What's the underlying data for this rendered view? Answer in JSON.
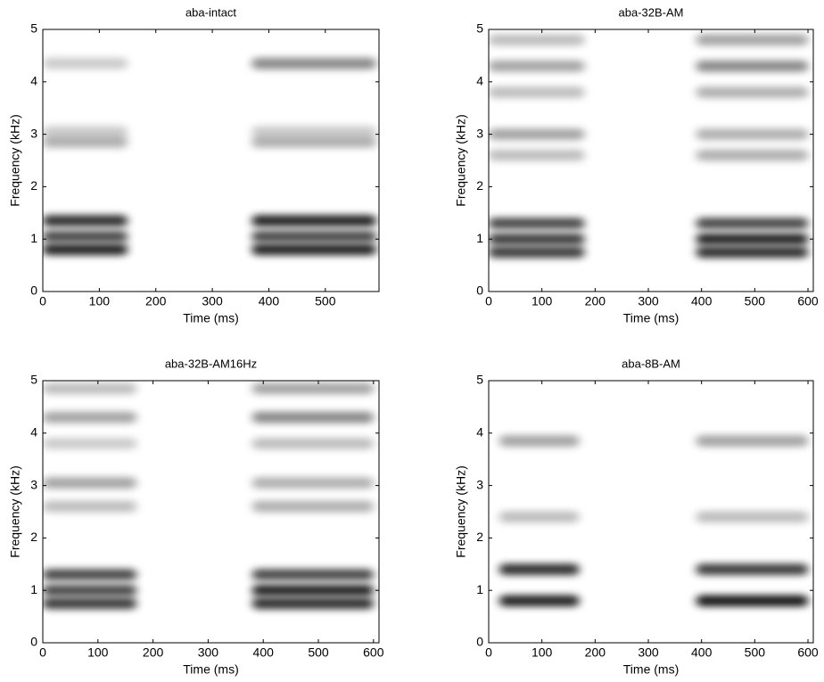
{
  "chart_data": [
    {
      "type": "spectrogram",
      "title": "aba-intact",
      "xlabel": "Time (ms)",
      "ylabel": "Frequency (kHz)",
      "xlim": [
        0,
        595
      ],
      "ylim": [
        0,
        5
      ],
      "xticks": [
        0,
        100,
        200,
        300,
        400,
        500
      ],
      "yticks": [
        0,
        1,
        2,
        3,
        4,
        5
      ],
      "segments": [
        [
          0,
          150
        ],
        [
          370,
          590
        ]
      ],
      "bands": [
        {
          "freq": 0.8,
          "intensity": [
            0.85,
            0.85
          ]
        },
        {
          "freq": 1.05,
          "intensity": [
            0.7,
            0.7
          ]
        },
        {
          "freq": 1.35,
          "intensity": [
            0.8,
            0.85
          ]
        },
        {
          "freq": 2.85,
          "intensity": [
            0.3,
            0.3
          ]
        },
        {
          "freq": 3.05,
          "intensity": [
            0.2,
            0.2
          ]
        },
        {
          "freq": 4.35,
          "intensity": [
            0.2,
            0.45
          ]
        }
      ]
    },
    {
      "type": "spectrogram",
      "title": "aba-32B-AM",
      "xlabel": "Time (ms)",
      "ylabel": "Frequency (kHz)",
      "xlim": [
        0,
        610
      ],
      "ylim": [
        0,
        5
      ],
      "xticks": [
        0,
        100,
        200,
        300,
        400,
        500,
        600
      ],
      "yticks": [
        0,
        1,
        2,
        3,
        4,
        5
      ],
      "segments": [
        [
          0,
          180
        ],
        [
          390,
          600
        ]
      ],
      "bands": [
        {
          "freq": 0.75,
          "intensity": [
            0.75,
            0.8
          ]
        },
        {
          "freq": 1.0,
          "intensity": [
            0.75,
            0.85
          ]
        },
        {
          "freq": 1.3,
          "intensity": [
            0.7,
            0.7
          ]
        },
        {
          "freq": 2.6,
          "intensity": [
            0.25,
            0.3
          ]
        },
        {
          "freq": 3.0,
          "intensity": [
            0.35,
            0.3
          ]
        },
        {
          "freq": 3.8,
          "intensity": [
            0.25,
            0.3
          ]
        },
        {
          "freq": 4.3,
          "intensity": [
            0.35,
            0.45
          ]
        },
        {
          "freq": 4.8,
          "intensity": [
            0.25,
            0.35
          ]
        }
      ]
    },
    {
      "type": "spectrogram",
      "title": "aba-32B-AM16Hz",
      "xlabel": "Time (ms)",
      "ylabel": "Frequency (kHz)",
      "xlim": [
        0,
        610
      ],
      "ylim": [
        0,
        5
      ],
      "xticks": [
        0,
        100,
        200,
        300,
        400,
        500,
        600
      ],
      "yticks": [
        0,
        1,
        2,
        3,
        4,
        5
      ],
      "segments": [
        [
          0,
          170
        ],
        [
          380,
          600
        ]
      ],
      "bands": [
        {
          "freq": 0.75,
          "intensity": [
            0.75,
            0.8
          ]
        },
        {
          "freq": 1.0,
          "intensity": [
            0.7,
            0.85
          ]
        },
        {
          "freq": 1.3,
          "intensity": [
            0.7,
            0.7
          ]
        },
        {
          "freq": 2.6,
          "intensity": [
            0.25,
            0.3
          ]
        },
        {
          "freq": 3.05,
          "intensity": [
            0.35,
            0.3
          ]
        },
        {
          "freq": 3.8,
          "intensity": [
            0.2,
            0.25
          ]
        },
        {
          "freq": 4.3,
          "intensity": [
            0.35,
            0.45
          ]
        },
        {
          "freq": 4.85,
          "intensity": [
            0.25,
            0.35
          ]
        }
      ]
    },
    {
      "type": "spectrogram",
      "title": "aba-8B-AM",
      "xlabel": "Time (ms)",
      "ylabel": "Frequency (kHz)",
      "xlim": [
        0,
        610
      ],
      "ylim": [
        0,
        5
      ],
      "xticks": [
        0,
        100,
        200,
        300,
        400,
        500,
        600
      ],
      "yticks": [
        0,
        1,
        2,
        3,
        4,
        5
      ],
      "segments": [
        [
          20,
          170
        ],
        [
          390,
          600
        ]
      ],
      "bands": [
        {
          "freq": 0.8,
          "intensity": [
            0.85,
            0.9
          ]
        },
        {
          "freq": 1.4,
          "intensity": [
            0.8,
            0.75
          ]
        },
        {
          "freq": 2.4,
          "intensity": [
            0.25,
            0.25
          ]
        },
        {
          "freq": 3.85,
          "intensity": [
            0.35,
            0.35
          ]
        }
      ]
    }
  ]
}
